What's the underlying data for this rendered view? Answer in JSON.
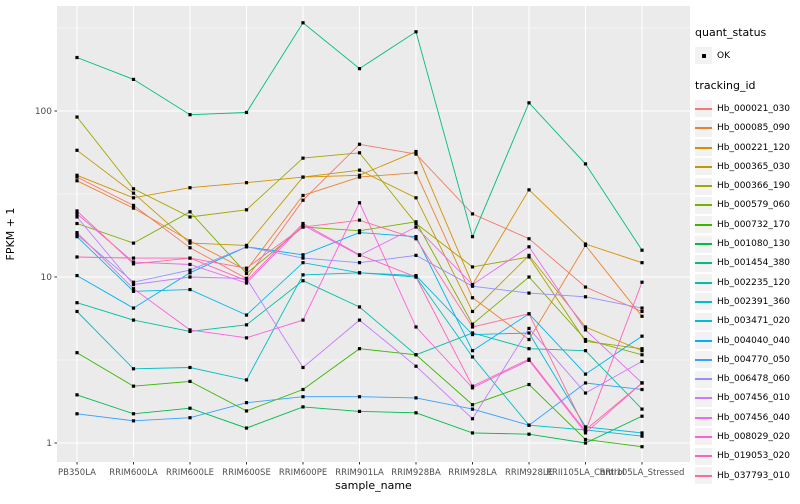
{
  "axes": {
    "y_title": "FPKM + 1",
    "x_title": "sample_name",
    "y_tick_labels": [
      "100",
      "10",
      "1"
    ],
    "y_tick_values": [
      100,
      10,
      1
    ],
    "y_minor_values": [
      316.23,
      31.623,
      3.1623
    ],
    "tick_color": "#4D4D4D",
    "panel_bg": "#EBEBEB",
    "grid_color": "#FFFFFF"
  },
  "legend": {
    "quant_status": {
      "title": "quant_status",
      "items": [
        {
          "label": "OK",
          "shape": "black-square-point"
        }
      ]
    },
    "tracking_id": {
      "title": "tracking_id"
    }
  },
  "chart_data": {
    "type": "line",
    "title": "",
    "xlabel": "sample_name",
    "ylabel": "FPKM + 1",
    "y_scale": "log10",
    "ylim": [
      0.77,
      410
    ],
    "grid": true,
    "legend_position": "right",
    "point_shape": "filled-black-square",
    "categories": [
      "PB350LA",
      "RRIM600LA",
      "RRIM600LE",
      "RRIM600SE",
      "RRIM600PE",
      "RRIM901LA",
      "RRIM928BA",
      "RRIM928LA",
      "RRIM928LE",
      "RRII105LA_Control",
      "RRII105LA_Stressed"
    ],
    "series": [
      {
        "name": "Hb_000021_030",
        "color": "#F8766D",
        "values": [
          40,
          27,
          15,
          9.8,
          29,
          63,
          55,
          24,
          17,
          8.7,
          6.2
        ]
      },
      {
        "name": "Hb_000085_090",
        "color": "#EA8331",
        "values": [
          38,
          26,
          16.5,
          11,
          31,
          40,
          42.5,
          7.5,
          4.2,
          15.5,
          5.8
        ]
      },
      {
        "name": "Hb_000221_120",
        "color": "#D89000",
        "values": [
          41,
          30,
          34.5,
          37,
          40,
          41,
          57,
          9.0,
          33.5,
          15.8,
          12.2
        ]
      },
      {
        "name": "Hb_000365_030",
        "color": "#C09B00",
        "values": [
          58,
          32,
          16,
          15.5,
          40,
          44,
          30,
          6.2,
          13.5,
          5.0,
          3.6
        ]
      },
      {
        "name": "Hb_000366_190",
        "color": "#A3A500",
        "values": [
          92,
          34,
          23,
          25.4,
          52,
          56,
          21,
          11.5,
          13.2,
          4.1,
          3.7
        ]
      },
      {
        "name": "Hb_000579_060",
        "color": "#7CAE00",
        "values": [
          21,
          16,
          24.7,
          10.5,
          20,
          19,
          21.5,
          5.2,
          10,
          4.2,
          3.4
        ]
      },
      {
        "name": "Hb_000732_170",
        "color": "#39B600",
        "values": [
          3.5,
          2.2,
          2.35,
          1.56,
          2.1,
          3.7,
          3.4,
          1.7,
          2.25,
          1.05,
          0.95
        ]
      },
      {
        "name": "Hb_001080_130",
        "color": "#00BB4E",
        "values": [
          1.95,
          1.5,
          1.62,
          1.23,
          1.65,
          1.55,
          1.52,
          1.15,
          1.13,
          1.0,
          1.45
        ]
      },
      {
        "name": "Hb_001454_380",
        "color": "#00BE7D",
        "values": [
          210,
          155,
          95,
          98,
          340,
          180,
          300,
          17.5,
          112,
          48,
          14.5
        ]
      },
      {
        "name": "Hb_002235_120",
        "color": "#00C1A3",
        "values": [
          7.0,
          5.5,
          4.7,
          5.15,
          9.5,
          6.6,
          3.4,
          4.6,
          3.7,
          3.6,
          1.6
        ]
      },
      {
        "name": "Hb_002391_360",
        "color": "#00BFC4",
        "values": [
          6.2,
          2.8,
          2.85,
          2.4,
          10.3,
          10.6,
          10.0,
          3.3,
          1.28,
          1.2,
          1.1
        ]
      },
      {
        "name": "Hb_003471_020",
        "color": "#00BAE0",
        "values": [
          17.5,
          8.2,
          8.4,
          5.9,
          12.2,
          10.6,
          10.2,
          4.5,
          4.6,
          1.25,
          1.15
        ]
      },
      {
        "name": "Hb_004040_040",
        "color": "#00B0F6",
        "values": [
          10.2,
          6.5,
          10.6,
          15.2,
          13.6,
          18.5,
          17.5,
          3.6,
          6.0,
          2.6,
          4.4
        ]
      },
      {
        "name": "Hb_004770_050",
        "color": "#35A2FF",
        "values": [
          1.5,
          1.36,
          1.42,
          1.75,
          1.9,
          1.9,
          1.87,
          1.6,
          1.28,
          2.3,
          2.1
        ]
      },
      {
        "name": "Hb_006478_060",
        "color": "#9590FF",
        "values": [
          18,
          9.3,
          11.0,
          15.2,
          13.0,
          12.2,
          13.5,
          8.8,
          8.0,
          7.6,
          6.5
        ]
      },
      {
        "name": "Hb_007456_010",
        "color": "#C77CFF",
        "values": [
          23,
          9.0,
          10.0,
          9.8,
          2.85,
          5.5,
          2.9,
          1.4,
          4.9,
          2.0,
          3.1
        ]
      },
      {
        "name": "Hb_007456_040",
        "color": "#E76BF3",
        "values": [
          24,
          12.3,
          11.9,
          9.2,
          20.5,
          13.5,
          20,
          9.0,
          15.2,
          4.8,
          2.3
        ]
      },
      {
        "name": "Hb_008029_020",
        "color": "#FA62DB",
        "values": [
          18.5,
          8.5,
          4.8,
          4.3,
          5.5,
          28,
          5.0,
          2.15,
          3.15,
          1.15,
          2.3
        ]
      },
      {
        "name": "Hb_019053_020",
        "color": "#FF62BC",
        "values": [
          13.2,
          13.0,
          13.0,
          9.5,
          21,
          13.6,
          10.0,
          2.2,
          3.2,
          1.18,
          9.3
        ]
      },
      {
        "name": "Hb_037793_010",
        "color": "#FF6A98",
        "values": [
          25,
          12.0,
          13.0,
          11.3,
          20,
          22,
          17,
          5.0,
          6.0,
          1.2,
          2.3
        ]
      }
    ]
  }
}
